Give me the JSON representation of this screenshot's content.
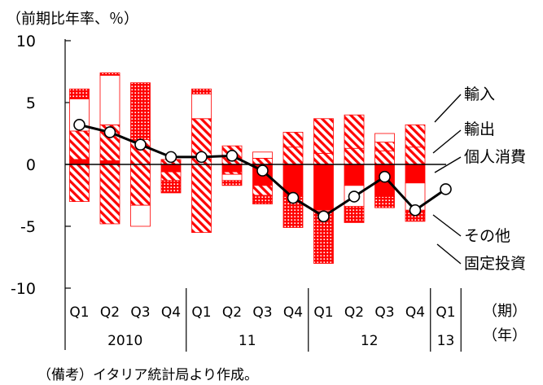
{
  "chart_data": {
    "type": "bar",
    "unit_label": "（前期比年率、％）",
    "period_label": "（期）",
    "year_label_text": "（年）",
    "note": "（備考）イタリア統計局より作成。",
    "ylim": [
      -10,
      10
    ],
    "yticks": [
      {
        "value": 10,
        "label": "10"
      },
      {
        "value": 5,
        "label": "5"
      },
      {
        "value": 0,
        "label": "0"
      },
      {
        "value": -5,
        "label": "-5"
      },
      {
        "value": -10,
        "label": "-10"
      }
    ],
    "categories": [
      "Q1",
      "Q2",
      "Q3",
      "Q4",
      "Q1",
      "Q2",
      "Q3",
      "Q4",
      "Q1",
      "Q2",
      "Q3",
      "Q4",
      "Q1"
    ],
    "year_groups": [
      {
        "label": "2010",
        "start": 0,
        "end": 3
      },
      {
        "label": "11",
        "start": 4,
        "end": 7
      },
      {
        "label": "12",
        "start": 8,
        "end": 11
      },
      {
        "label": "13",
        "start": 12,
        "end": 12
      }
    ],
    "series": [
      {
        "name": "個人消費",
        "key": "consumption",
        "values": [
          0.4,
          0.3,
          0.0,
          -0.6,
          0.0,
          -0.6,
          -1.7,
          -2.6,
          -3.7,
          -1.7,
          -2.6,
          -1.5,
          null
        ]
      },
      {
        "name": "輸出",
        "key": "exports",
        "values": [
          2.3,
          2.9,
          2.0,
          0.4,
          3.7,
          1.5,
          0.5,
          1.4,
          0.9,
          1.3,
          1.1,
          1.4,
          null
        ]
      },
      {
        "name": "輸入",
        "key": "imports",
        "values": [
          -3.0,
          -4.8,
          -3.3,
          -0.7,
          -5.5,
          -0.2,
          -0.8,
          1.2,
          2.8,
          2.7,
          0.7,
          1.8,
          null
        ]
      },
      {
        "name": "その他",
        "key": "other",
        "values": [
          2.6,
          4.0,
          -1.7,
          0.0,
          2.0,
          -0.5,
          0.5,
          0.0,
          -0.1,
          -1.7,
          0.7,
          -2.2,
          null
        ]
      },
      {
        "name": "固定投資",
        "key": "investment",
        "values": [
          0.8,
          0.2,
          4.6,
          -1.0,
          0.4,
          -0.4,
          -0.7,
          -2.5,
          -4.2,
          -1.3,
          -0.9,
          -0.9,
          null
        ]
      }
    ],
    "stack_order": [
      "consumption",
      "exports",
      "imports",
      "other",
      "investment"
    ],
    "gdp": {
      "name": "GDP",
      "values": [
        3.2,
        2.6,
        1.6,
        0.6,
        0.6,
        0.7,
        -0.5,
        -2.7,
        -4.2,
        -2.6,
        -1.0,
        -3.7,
        -2.0
      ]
    },
    "legend_labels": [
      {
        "series": "imports",
        "text": "輸入"
      },
      {
        "series": "exports",
        "text": "輸出"
      },
      {
        "series": "consumption",
        "text": "個人消費"
      },
      {
        "series": "other",
        "text": "その他"
      },
      {
        "series": "investment",
        "text": "固定投資"
      }
    ],
    "colors": {
      "accent": "#ff0000",
      "line": "#000000",
      "background": "#ffffff"
    }
  }
}
